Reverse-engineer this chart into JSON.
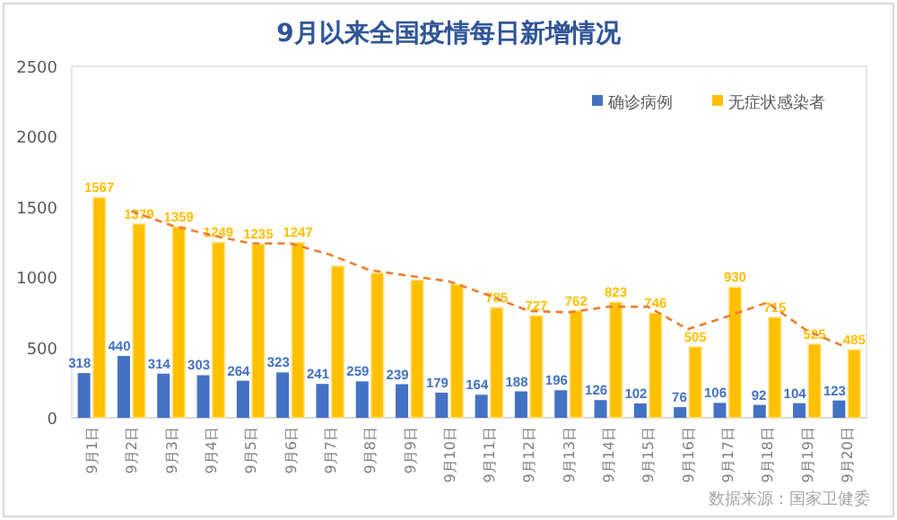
{
  "chart_data": {
    "type": "bar",
    "title": "9月以来全国疫情每日新增情况",
    "categories": [
      "9月1日",
      "9月2日",
      "9月3日",
      "9月4日",
      "9月5日",
      "9月6日",
      "9月7日",
      "9月8日",
      "9月9日",
      "9月10日",
      "9月11日",
      "9月12日",
      "9月13日",
      "9月14日",
      "9月15日",
      "9月16日",
      "9月17日",
      "9月18日",
      "9月19日",
      "9月20日"
    ],
    "series": [
      {
        "name": "确诊病例",
        "color": "#4472c4",
        "values": [
          318,
          440,
          314,
          303,
          264,
          323,
          241,
          259,
          239,
          179,
          164,
          188,
          196,
          126,
          102,
          76,
          106,
          92,
          104,
          123
        ],
        "value_labels": [
          "318",
          "440",
          "314",
          "303",
          "264",
          "323",
          "241",
          "259",
          "239",
          "179",
          "164",
          "188",
          "196",
          "126",
          "102",
          "76",
          "106",
          "92",
          "104",
          "123"
        ]
      },
      {
        "name": "无症状感染者",
        "color": "#ffc000",
        "values": [
          1567,
          1379,
          1359,
          1249,
          1235,
          1247,
          1080,
          1030,
          980,
          950,
          785,
          727,
          762,
          823,
          746,
          505,
          930,
          715,
          525,
          485
        ],
        "value_labels": [
          "1567",
          "1379",
          "1359",
          "1249",
          "1235",
          "1247",
          null,
          null,
          null,
          null,
          "785",
          "727",
          "762",
          "823",
          "746",
          "505",
          "930",
          "715",
          "525",
          "485"
        ]
      },
      {
        "type": "line",
        "color": "#ed7d31",
        "line_style": "dashed",
        "values": [
          null,
          1470,
          1370,
          1300,
          1240,
          1240,
          1160,
          1050,
          1010,
          970,
          870,
          760,
          750,
          790,
          790,
          630,
          720,
          820,
          620,
          500
        ]
      }
    ],
    "ylim": [
      0,
      2500
    ],
    "yticks": [
      0,
      500,
      1000,
      1500,
      2000,
      2500
    ],
    "grid": false,
    "legend": "top right",
    "annotations": [
      "数据来源：国家卫健委"
    ]
  }
}
